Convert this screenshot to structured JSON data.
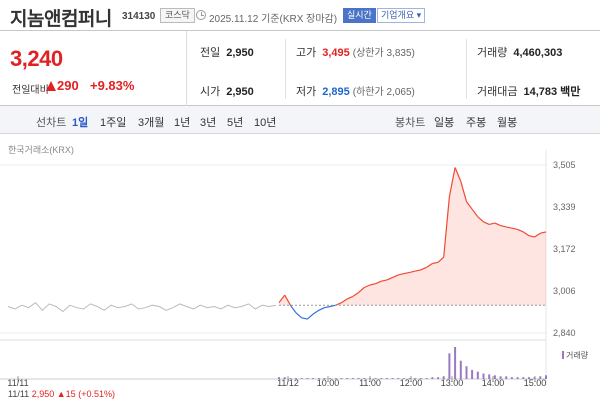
{
  "header": {
    "stock_name": "지놈앤컴퍼니",
    "stock_code": "314130",
    "market": "코스닥",
    "date_text": "2025.11.12 기준(KRX 장마감)",
    "realtime_label": "실시간",
    "company_label": "기업개요 ▾"
  },
  "price": {
    "current": "3,240",
    "change_label": "전일대비",
    "change_amount": "290",
    "change_rate": "+9.83%",
    "direction": "up"
  },
  "stats": {
    "prev_close": {
      "label": "전일",
      "value": "2,950"
    },
    "open": {
      "label": "시가",
      "value": "2,950"
    },
    "high": {
      "label": "고가",
      "value": "3,495",
      "sub": "(상한가 3,835)"
    },
    "low": {
      "label": "저가",
      "value": "2,895",
      "sub": "(하한가 2,065)"
    },
    "volume": {
      "label": "거래량",
      "value": "4,460,303"
    },
    "trade_amount": {
      "label": "거래대금",
      "value": "14,783",
      "unit": "백만"
    }
  },
  "toolbar": {
    "line_label": "선차트",
    "periods": [
      "1일",
      "1주일",
      "3개월",
      "1년",
      "3년",
      "5년",
      "10년"
    ],
    "active_period": "1일",
    "candle_label": "봉차트",
    "candles": [
      "일봉",
      "주봉",
      "월봉"
    ]
  },
  "chart_data": {
    "type": "line",
    "source_label": "한국거래소(KRX)",
    "yticks": [
      "3,505",
      "3,339",
      "3,172",
      "3,006",
      "2,840"
    ],
    "ylim": [
      2840,
      3505
    ],
    "baseline": 2950,
    "xticks": [
      "11/11",
      "11/12",
      "10:00",
      "11:00",
      "12:00",
      "13:00",
      "14:00",
      "15:00"
    ],
    "volume_label": "거래량",
    "prev_day": {
      "label": "11/11",
      "close": "2,950",
      "change": "15",
      "rate": "(+0.51%)"
    },
    "today": {
      "times": [
        "09:00",
        "09:05",
        "09:10",
        "09:15",
        "09:20",
        "09:25",
        "09:30",
        "09:35",
        "09:40",
        "09:45",
        "09:50",
        "09:55",
        "10:00",
        "10:10",
        "10:20",
        "10:30",
        "10:40",
        "10:50",
        "11:00",
        "11:10",
        "11:20",
        "11:30",
        "11:40",
        "11:50",
        "12:00",
        "12:10",
        "12:20",
        "12:30",
        "12:40",
        "12:50",
        "13:00",
        "13:05",
        "13:10",
        "13:15",
        "13:20",
        "13:25",
        "13:30",
        "13:40",
        "13:50",
        "14:00",
        "14:10",
        "14:20",
        "14:30",
        "14:40",
        "14:50",
        "15:00",
        "15:10",
        "15:20"
      ],
      "values": [
        2960,
        2990,
        2950,
        2920,
        2900,
        2895,
        2915,
        2930,
        2940,
        2945,
        2950,
        2960,
        2975,
        2985,
        3000,
        3020,
        3030,
        3035,
        3045,
        3050,
        3060,
        3070,
        3075,
        3080,
        3085,
        3090,
        3100,
        3115,
        3120,
        3140,
        3380,
        3495,
        3440,
        3360,
        3330,
        3300,
        3280,
        3270,
        3275,
        3265,
        3260,
        3255,
        3250,
        3240,
        3225,
        3220,
        3235,
        3240
      ]
    },
    "prev_day_series": [
      2945,
      2935,
      2950,
      2940,
      2960,
      2930,
      2955,
      2945,
      2925,
      2950,
      2940,
      2935,
      2955,
      2945,
      2930,
      2950,
      2940,
      2945,
      2955,
      2935,
      2940,
      2950,
      2945,
      2930,
      2940,
      2955,
      2945,
      2935,
      2950,
      2940,
      2945,
      2935,
      2950,
      2940,
      2945,
      2955,
      2935,
      2950,
      2945,
      2950
    ],
    "volume": [
      2,
      2,
      1,
      1,
      1,
      1,
      1,
      1,
      1,
      1,
      1,
      1,
      1,
      1,
      1,
      1,
      1,
      1,
      1,
      1,
      1,
      1,
      1,
      1,
      1,
      1,
      1,
      2,
      2,
      3,
      28,
      35,
      20,
      14,
      10,
      8,
      6,
      5,
      4,
      3,
      3,
      2,
      2,
      2,
      2,
      2,
      3,
      4
    ]
  }
}
